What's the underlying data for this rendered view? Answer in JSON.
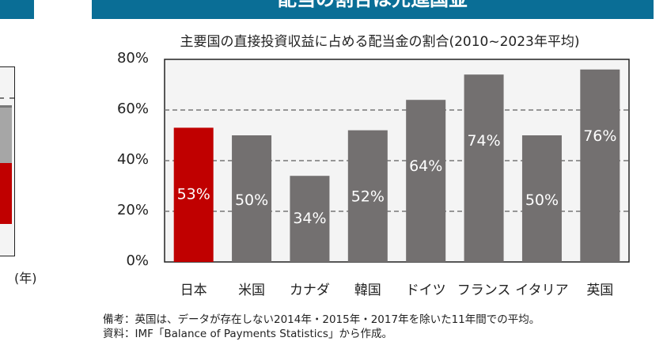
{
  "header": {
    "title": "配当の割合は先進国並",
    "color": "#0a6e96"
  },
  "left_chart": {
    "unit_label": "(年)"
  },
  "chart_data": {
    "type": "bar",
    "title": "主要国の直接投資収益に占める配当金の割合(2010~2023年平均)",
    "categories": [
      "日本",
      "米国",
      "カナダ",
      "韓国",
      "ドイツ",
      "フランス",
      "イタリア",
      "英国"
    ],
    "values": [
      53,
      50,
      34,
      52,
      64,
      74,
      50,
      76
    ],
    "data_labels": [
      "53%",
      "50%",
      "34%",
      "52%",
      "64%",
      "74%",
      "50%",
      "76%"
    ],
    "ylim": [
      0,
      80
    ],
    "yticks": [
      "0%",
      "20%",
      "40%",
      "60%",
      "80%"
    ],
    "grid": "dashed horizontal",
    "colors": {
      "highlight": "#c00000",
      "default": "#737070"
    }
  },
  "notes": [
    "備考：英国は、データが存在しない2014年・2015年・2017年を除いた11年間での平均。",
    "資料：IMF「Balance of Payments Statistics」から作成。"
  ]
}
